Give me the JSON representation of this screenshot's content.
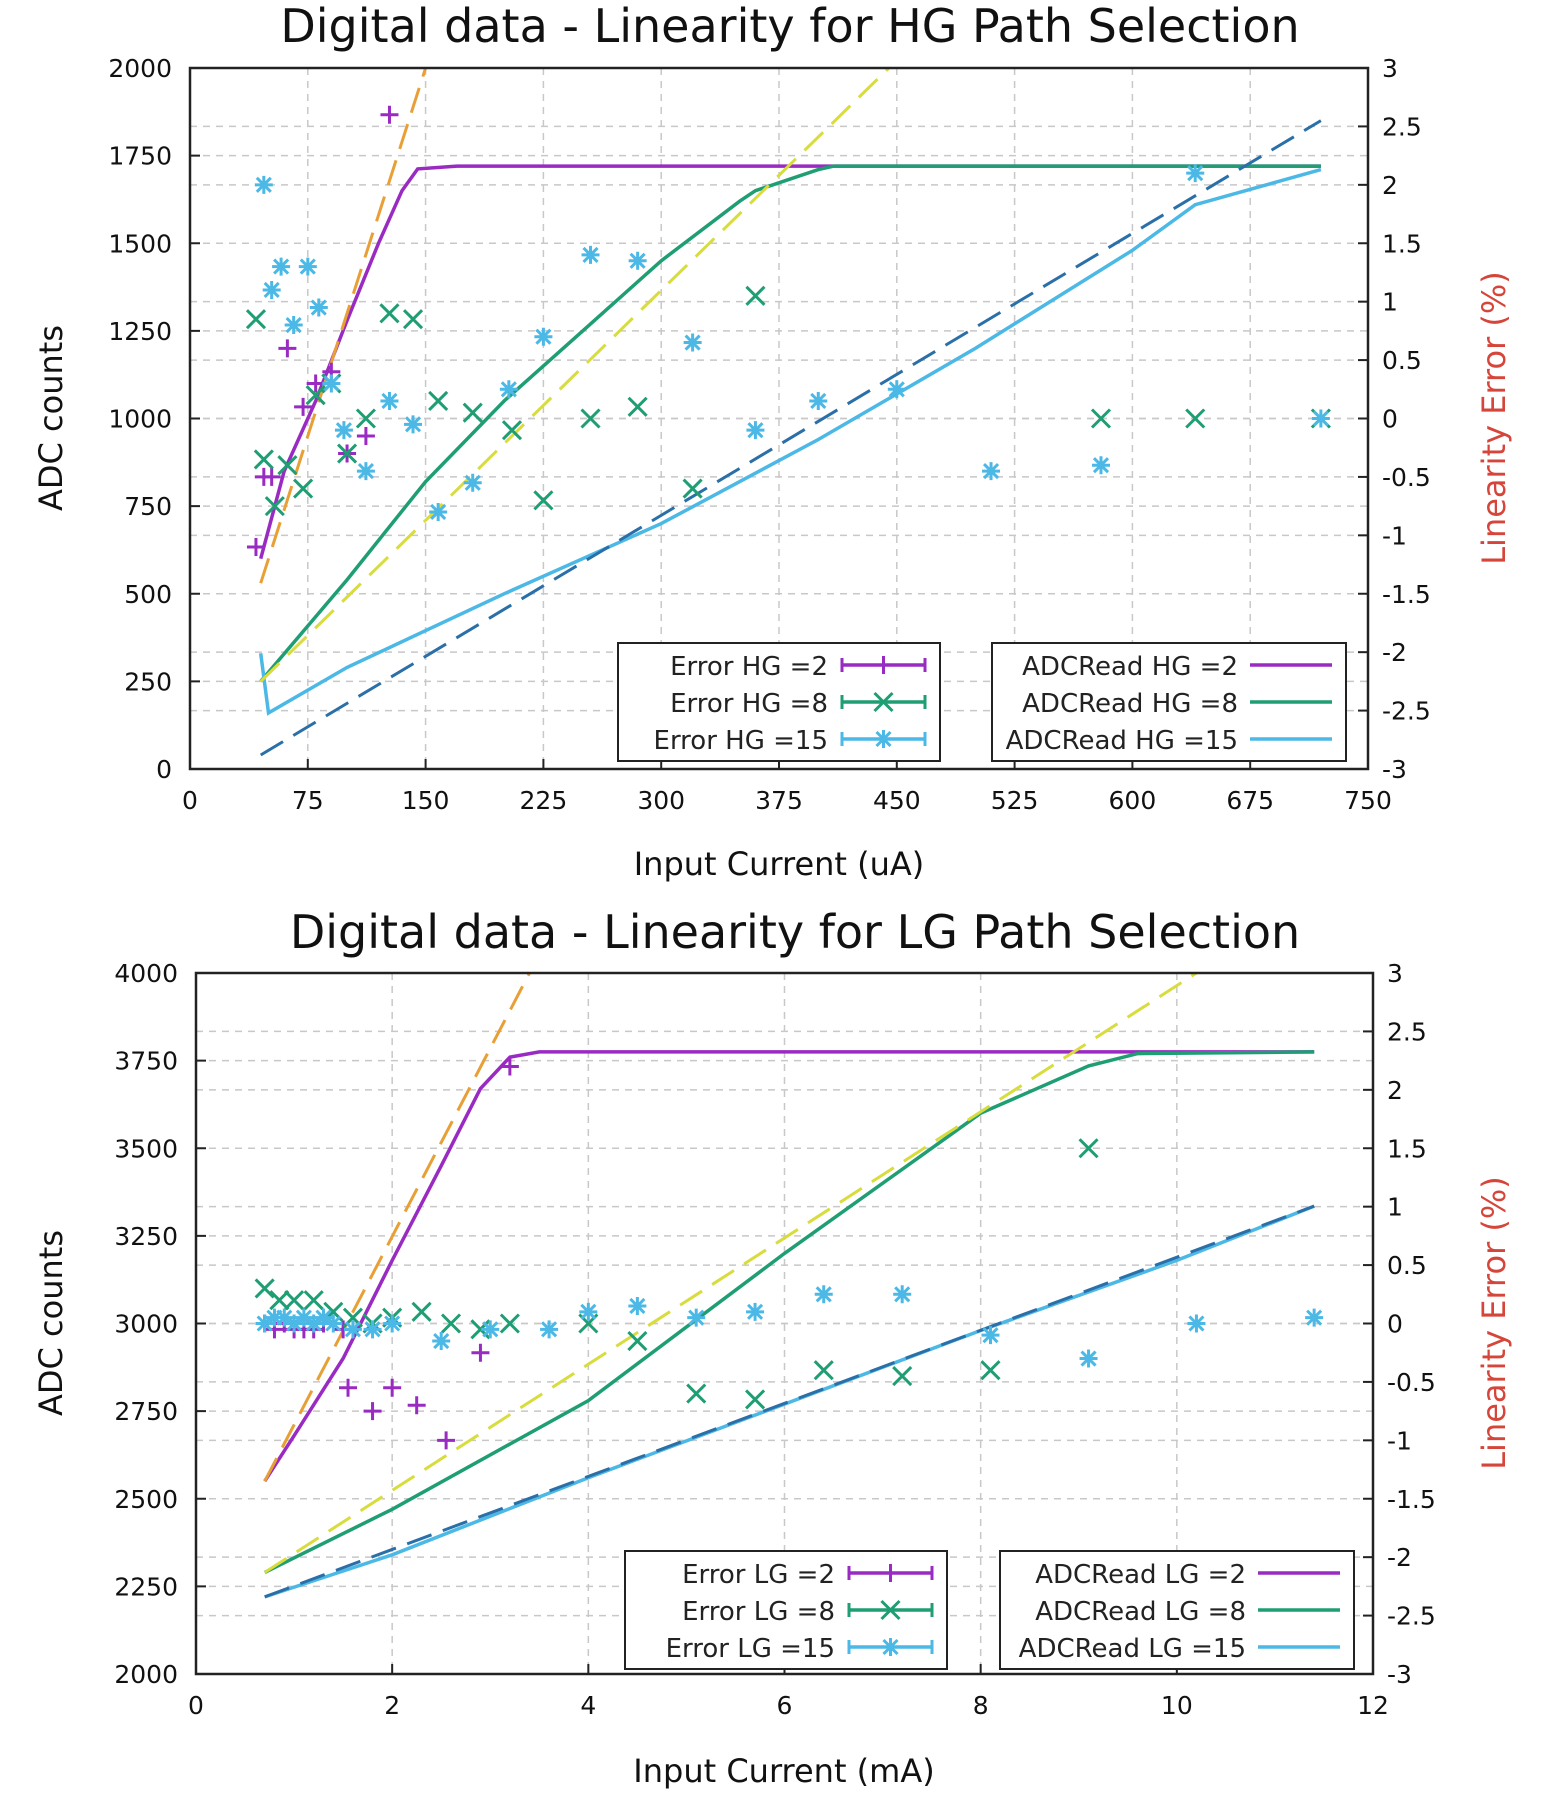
{
  "colors": {
    "hg2": "#9a2bc2",
    "hg8": "#1f9e73",
    "hg15": "#4bb8e6",
    "fit_orange": "#e8a036",
    "fit_yellow": "#d8dc3c",
    "fit_blue": "#2a6fa8",
    "error_axis": "#d6453a"
  },
  "chart_data": [
    {
      "type": "line",
      "title": "Digital data - Linearity for HG Path Selection",
      "xlabel": "Input Current (uA)",
      "ylabel": "ADC counts",
      "y2label": "Linearity Error (%)",
      "xlim": [
        0,
        750
      ],
      "ylim": [
        0,
        2000
      ],
      "y2lim": [
        -3,
        3
      ],
      "xticks": [
        "0",
        "75",
        "150",
        "225",
        "300",
        "375",
        "450",
        "525",
        "600",
        "675",
        "750"
      ],
      "yticks": [
        "0",
        "250",
        "500",
        "750",
        "1000",
        "1250",
        "1500",
        "1750",
        "2000"
      ],
      "y2ticks": [
        "-3",
        "-2.5",
        "-2",
        "-1.5",
        "-1",
        "-0.5",
        "0",
        "0.5",
        "1",
        "1.5",
        "2",
        "2.5",
        "3"
      ],
      "grid": true,
      "legend_left": [
        "Error HG =2",
        "Error HG =8",
        "Error HG =15"
      ],
      "legend_right": [
        "ADCRead HG =2",
        "ADCRead HG =8",
        "ADCRead HG =15"
      ],
      "series": [
        {
          "name": "ADCRead HG =2",
          "kind": "line",
          "color_key": "hg2",
          "x": [
            45,
            60,
            80,
            100,
            120,
            135,
            145,
            170,
            250,
            400,
            600,
            720
          ],
          "y": [
            600,
            850,
            1050,
            1280,
            1500,
            1650,
            1712,
            1720,
            1720,
            1720,
            1720,
            1720
          ]
        },
        {
          "name": "ADCRead HG =8",
          "kind": "line",
          "color_key": "hg8",
          "x": [
            45,
            100,
            150,
            200,
            250,
            300,
            350,
            360,
            400,
            410,
            500,
            720
          ],
          "y": [
            250,
            540,
            820,
            1050,
            1250,
            1450,
            1620,
            1650,
            1710,
            1720,
            1720,
            1720
          ]
        },
        {
          "name": "ADCRead HG =15",
          "kind": "line",
          "color_key": "hg15",
          "x": [
            45,
            50,
            100,
            200,
            300,
            400,
            500,
            600,
            640,
            720
          ],
          "y": [
            330,
            160,
            290,
            500,
            700,
            940,
            1200,
            1480,
            1610,
            1710
          ]
        },
        {
          "name": "fit HG =2",
          "kind": "fit",
          "color_key": "fit_orange",
          "x": [
            45,
            150
          ],
          "y": [
            530,
            2000
          ]
        },
        {
          "name": "fit HG =8",
          "kind": "fit",
          "color_key": "fit_yellow",
          "x": [
            45,
            445
          ],
          "y": [
            250,
            2000
          ]
        },
        {
          "name": "fit HG =15",
          "kind": "fit",
          "color_key": "fit_blue",
          "x": [
            45,
            720
          ],
          "y": [
            40,
            1850
          ]
        },
        {
          "name": "Error HG =2",
          "kind": "err",
          "marker": "plus",
          "color_key": "hg2",
          "x": [
            42,
            47,
            52,
            62,
            72,
            80,
            90,
            100,
            112,
            127
          ],
          "y": [
            -1.1,
            -0.5,
            -0.5,
            0.6,
            0.1,
            0.3,
            0.4,
            -0.3,
            -0.15,
            2.6
          ]
        },
        {
          "name": "Error HG =8",
          "kind": "err",
          "marker": "x",
          "color_key": "hg8",
          "x": [
            42,
            47,
            54,
            62,
            72,
            80,
            90,
            100,
            112,
            127,
            142,
            158,
            180,
            205,
            225,
            255,
            285,
            320,
            360,
            580,
            640,
            720
          ],
          "y": [
            0.85,
            -0.35,
            -0.75,
            -0.4,
            -0.6,
            0.2,
            0.3,
            -0.3,
            0.0,
            0.9,
            0.85,
            0.15,
            0.05,
            -0.1,
            -0.7,
            0.0,
            0.1,
            -0.6,
            1.05,
            0.0,
            0.0,
            0.0
          ]
        },
        {
          "name": "Error HG =15",
          "kind": "err",
          "marker": "star",
          "color_key": "hg15",
          "x": [
            47,
            52,
            58,
            66,
            75,
            82,
            90,
            98,
            112,
            127,
            142,
            158,
            180,
            203,
            225,
            255,
            285,
            320,
            360,
            400,
            450,
            510,
            580,
            640,
            720
          ],
          "y": [
            2.0,
            1.1,
            1.3,
            0.8,
            1.3,
            0.95,
            0.3,
            -0.1,
            -0.45,
            0.15,
            -0.05,
            -0.8,
            -0.55,
            0.25,
            0.7,
            1.4,
            1.35,
            0.65,
            -0.1,
            0.15,
            0.25,
            -0.45,
            -0.4,
            2.1,
            0.0
          ]
        }
      ]
    },
    {
      "type": "line",
      "title": "Digital data - Linearity for LG Path Selection",
      "xlabel": "Input Current (mA)",
      "ylabel": "ADC counts",
      "y2label": "Linearity Error (%)",
      "xlim": [
        0,
        12
      ],
      "ylim": [
        2000,
        4000
      ],
      "y2lim": [
        -3,
        3
      ],
      "xticks": [
        "0",
        "2",
        "4",
        "6",
        "8",
        "10",
        "12"
      ],
      "yticks": [
        "2000",
        "2250",
        "2500",
        "2750",
        "3000",
        "3250",
        "3500",
        "3750",
        "4000"
      ],
      "y2ticks": [
        "-3",
        "-2.5",
        "-2",
        "-1.5",
        "-1",
        "-0.5",
        "0",
        "0.5",
        "1",
        "1.5",
        "2",
        "2.5",
        "3"
      ],
      "grid": true,
      "legend_left": [
        "Error LG =2",
        "Error LG =8",
        "Error LG =15"
      ],
      "legend_right": [
        "ADCRead LG =2",
        "ADCRead LG =8",
        "ADCRead LG =15"
      ],
      "series": [
        {
          "name": "ADCRead LG =2",
          "kind": "line",
          "color_key": "hg2",
          "x": [
            0.7,
            1.0,
            1.5,
            2.0,
            2.5,
            2.9,
            3.2,
            3.5,
            6.0,
            9.0,
            11.4
          ],
          "y": [
            2550,
            2680,
            2900,
            3180,
            3450,
            3670,
            3760,
            3775,
            3775,
            3775,
            3775
          ]
        },
        {
          "name": "ADCRead LG =8",
          "kind": "line",
          "color_key": "hg8",
          "x": [
            0.7,
            2.0,
            4.0,
            6.0,
            8.0,
            9.1,
            9.6,
            11.4
          ],
          "y": [
            2290,
            2470,
            2780,
            3200,
            3600,
            3735,
            3770,
            3775
          ]
        },
        {
          "name": "ADCRead LG =15",
          "kind": "line",
          "color_key": "hg15",
          "x": [
            0.7,
            2.0,
            4.0,
            6.0,
            8.0,
            10.0,
            11.4
          ],
          "y": [
            2220,
            2340,
            2560,
            2770,
            2980,
            3180,
            3335
          ]
        },
        {
          "name": "fit LG =2",
          "kind": "fit",
          "color_key": "fit_orange",
          "x": [
            0.7,
            3.4
          ],
          "y": [
            2550,
            4000
          ]
        },
        {
          "name": "fit LG =8",
          "kind": "fit",
          "color_key": "fit_yellow",
          "x": [
            0.7,
            10.2
          ],
          "y": [
            2290,
            4000
          ]
        },
        {
          "name": "fit LG =15",
          "kind": "fit",
          "color_key": "fit_blue",
          "x": [
            0.7,
            11.4
          ],
          "y": [
            2220,
            3335
          ]
        }
      ],
      "errors": [
        {
          "name": "Error LG =2",
          "marker": "plus",
          "color_key": "hg2",
          "x": [
            0.7,
            0.8,
            0.9,
            1.0,
            1.1,
            1.2,
            1.3,
            1.5,
            1.55,
            1.8,
            2.0,
            2.25,
            2.55,
            2.9,
            3.2
          ],
          "y": [
            0.0,
            -0.05,
            0.0,
            -0.05,
            -0.05,
            -0.05,
            0.0,
            -0.05,
            -0.55,
            -0.75,
            -0.55,
            -0.7,
            -1.0,
            -0.25,
            2.2
          ]
        },
        {
          "name": "Error LG =8",
          "marker": "x",
          "color_key": "hg8",
          "x": [
            0.7,
            0.85,
            1.0,
            1.2,
            1.4,
            1.6,
            1.8,
            2.0,
            2.3,
            2.6,
            2.9,
            3.2,
            4.0,
            4.5,
            5.1,
            5.7,
            6.4,
            7.2,
            8.1,
            9.1
          ],
          "y": [
            0.3,
            0.2,
            0.2,
            0.2,
            0.1,
            0.05,
            0.0,
            0.05,
            0.1,
            0.0,
            -0.05,
            0.0,
            0.0,
            -0.15,
            -0.6,
            -0.65,
            -0.4,
            -0.45,
            -0.4,
            1.5
          ]
        },
        {
          "name": "Error LG =15",
          "marker": "star",
          "color_key": "hg15",
          "x": [
            0.7,
            0.8,
            0.9,
            1.0,
            1.1,
            1.2,
            1.3,
            1.4,
            1.6,
            1.8,
            2.0,
            2.5,
            3.0,
            3.6,
            4.0,
            4.5,
            5.1,
            5.7,
            6.4,
            7.2,
            8.1,
            9.1,
            10.2,
            11.4
          ],
          "y": [
            0.0,
            0.05,
            0.05,
            0.0,
            0.05,
            0.0,
            0.05,
            0.0,
            -0.05,
            -0.05,
            0.0,
            -0.15,
            -0.05,
            -0.05,
            0.1,
            0.15,
            0.05,
            0.1,
            0.25,
            0.25,
            -0.1,
            -0.3,
            0.0,
            0.05
          ]
        }
      ]
    }
  ]
}
